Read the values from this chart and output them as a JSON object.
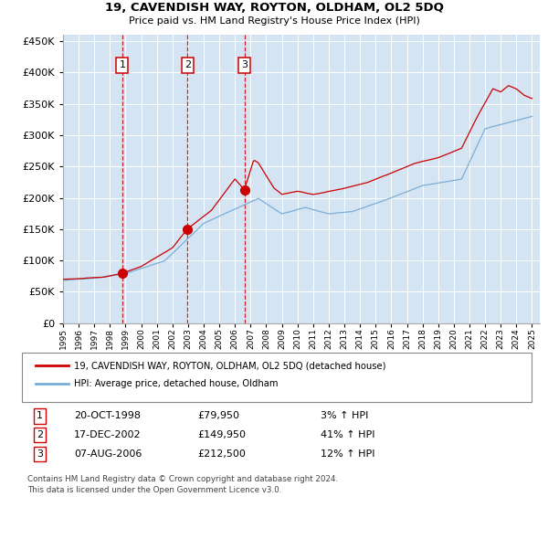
{
  "title": "19, CAVENDISH WAY, ROYTON, OLDHAM, OL2 5DQ",
  "subtitle": "Price paid vs. HM Land Registry's House Price Index (HPI)",
  "sale_prices": [
    79950,
    149950,
    212500
  ],
  "sale_labels": [
    "1",
    "2",
    "3"
  ],
  "sale_hpi_pct": [
    "3% ↑ HPI",
    "41% ↑ HPI",
    "12% ↑ HPI"
  ],
  "sale_dates_str": [
    "20-OCT-1998",
    "17-DEC-2002",
    "07-AUG-2006"
  ],
  "sale_decimal_years": [
    1998.79,
    2002.96,
    2006.6
  ],
  "legend_line1": "19, CAVENDISH WAY, ROYTON, OLDHAM, OL2 5DQ (detached house)",
  "legend_line2": "HPI: Average price, detached house, Oldham",
  "footer1": "Contains HM Land Registry data © Crown copyright and database right 2024.",
  "footer2": "This data is licensed under the Open Government Licence v3.0.",
  "line_color_price": "#cc0000",
  "line_color_hpi": "#7aaed6",
  "bg_color": "#dce9f5",
  "vline_color": "#cc0000",
  "marker_color": "#cc0000",
  "ylim": [
    0,
    460000
  ],
  "yticks": [
    0,
    50000,
    100000,
    150000,
    200000,
    250000,
    300000,
    350000,
    400000,
    450000
  ],
  "hpi_anchors_t": [
    1995.0,
    1997.0,
    1999.0,
    2001.5,
    2004.0,
    2007.5,
    2009.0,
    2010.5,
    2012.0,
    2013.5,
    2016.0,
    2018.0,
    2020.5,
    2022.0,
    2023.5,
    2025.0
  ],
  "hpi_anchors_v": [
    68000,
    72000,
    80000,
    100000,
    160000,
    200000,
    175000,
    185000,
    175000,
    178000,
    200000,
    220000,
    230000,
    310000,
    320000,
    330000
  ],
  "price_anchors_t": [
    1995.0,
    1997.5,
    1998.8,
    2000.0,
    2002.0,
    2002.95,
    2004.5,
    2006.0,
    2006.6,
    2007.2,
    2007.5,
    2008.5,
    2009.0,
    2010.0,
    2011.0,
    2012.0,
    2013.0,
    2014.5,
    2016.0,
    2017.5,
    2019.0,
    2020.5,
    2021.5,
    2022.5,
    2023.0,
    2023.5,
    2024.0,
    2024.5,
    2025.0
  ],
  "price_anchors_v": [
    70000,
    73000,
    79950,
    90000,
    120000,
    149950,
    180000,
    230000,
    212500,
    260000,
    255000,
    215000,
    205000,
    210000,
    205000,
    210000,
    215000,
    225000,
    240000,
    255000,
    265000,
    280000,
    330000,
    375000,
    370000,
    380000,
    375000,
    365000,
    360000
  ]
}
